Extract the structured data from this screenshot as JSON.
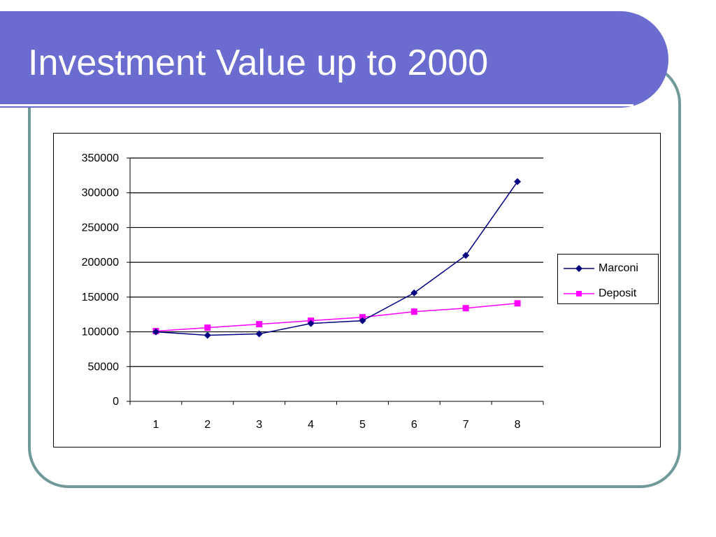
{
  "slide": {
    "title": "Investment Value up to 2000"
  },
  "colors": {
    "title_bar": "#6b6ccf",
    "frame": "#6f9a99",
    "marconi": "#000080",
    "deposit": "#ff00ff"
  },
  "chart_data": {
    "type": "line",
    "title": "",
    "xlabel": "",
    "ylabel": "",
    "categories": [
      "1",
      "2",
      "3",
      "4",
      "5",
      "6",
      "7",
      "8"
    ],
    "y_ticks": [
      0,
      50000,
      100000,
      150000,
      200000,
      250000,
      300000,
      350000
    ],
    "ylim": [
      0,
      350000
    ],
    "grid": "horizontal",
    "legend_position": "right",
    "series": [
      {
        "name": "Marconi",
        "marker": "diamond",
        "color": "#000080",
        "values": [
          100000,
          95000,
          97000,
          112000,
          116000,
          156000,
          210000,
          316000
        ]
      },
      {
        "name": "Deposit",
        "marker": "square",
        "color": "#ff00ff",
        "values": [
          101000,
          106000,
          111000,
          116000,
          121000,
          129000,
          134000,
          141000
        ]
      }
    ]
  }
}
